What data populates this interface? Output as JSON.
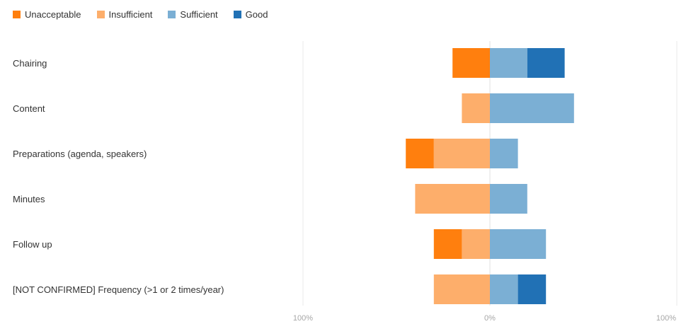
{
  "chart_data": {
    "type": "bar",
    "orientation": "horizontal",
    "stacking": "diverging",
    "categories": [
      "Chairing",
      "Content",
      "Preparations (agenda, speakers)",
      "Minutes",
      "Follow up",
      "[NOT CONFIRMED] Frequency (>1 or 2 times/year)"
    ],
    "series": [
      {
        "name": "Unacceptable",
        "color": "#ff7f0e",
        "side": "negative",
        "values": [
          20,
          0,
          15,
          0,
          15,
          0
        ]
      },
      {
        "name": "Insufficient",
        "color": "#fdae6b",
        "side": "negative",
        "values": [
          0,
          15,
          30,
          40,
          15,
          30
        ]
      },
      {
        "name": "Sufficient",
        "color": "#7bafd4",
        "side": "positive",
        "values": [
          20,
          45,
          15,
          20,
          30,
          15
        ]
      },
      {
        "name": "Good",
        "color": "#2171b5",
        "side": "positive",
        "values": [
          20,
          0,
          0,
          0,
          0,
          15
        ]
      }
    ],
    "xlim": [
      -100,
      100
    ],
    "x_ticks": [
      {
        "value": -100,
        "label": "100%"
      },
      {
        "value": 0,
        "label": "0%"
      },
      {
        "value": 100,
        "label": "100%"
      }
    ],
    "legend_position": "top-left",
    "grid": true
  }
}
